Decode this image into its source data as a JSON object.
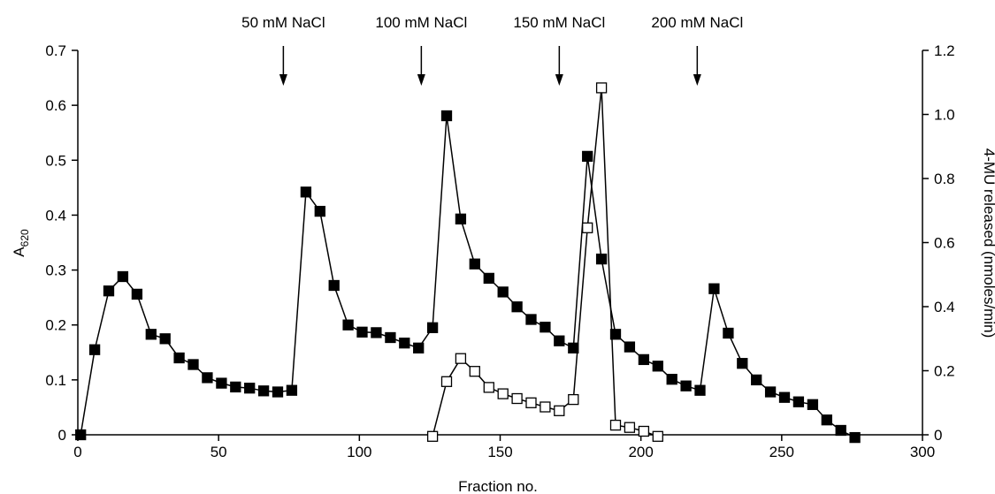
{
  "chart_data": {
    "type": "line",
    "title": "",
    "xlabel": "Fraction no.",
    "ylabel_main": "A",
    "ylabel_sub": "620",
    "y2label": "4-MU released (nmoles/min)",
    "xlim": [
      0,
      300
    ],
    "ylim": [
      0,
      0.7
    ],
    "y2lim": [
      0,
      1.2
    ],
    "x_ticks": [
      "0",
      "50",
      "100",
      "150",
      "200",
      "250",
      "300"
    ],
    "y_ticks": [
      "0",
      "0.1",
      "0.2",
      "0.3",
      "0.4",
      "0.5",
      "0.6",
      "0.7"
    ],
    "y2_ticks": [
      "0",
      "0.2",
      "0.4",
      "0.6",
      "0.8",
      "1.0",
      "1.2"
    ],
    "grid": false,
    "legend": "none",
    "annotations": [
      {
        "x": 73,
        "text": "50 mM NaCl"
      },
      {
        "x": 122,
        "text": "100 mM NaCl"
      },
      {
        "x": 171,
        "text": "150 mM NaCl"
      },
      {
        "x": 220,
        "text": "200 mM NaCl"
      }
    ],
    "series": [
      {
        "axis": "left",
        "marker": "filled-square",
        "points": [
          [
            1,
            0.0
          ],
          [
            6,
            0.155
          ],
          [
            11,
            0.262
          ],
          [
            16,
            0.288
          ],
          [
            21,
            0.256
          ],
          [
            26,
            0.183
          ],
          [
            31,
            0.175
          ],
          [
            36,
            0.14
          ],
          [
            41,
            0.128
          ],
          [
            46,
            0.104
          ],
          [
            51,
            0.094
          ],
          [
            56,
            0.087
          ],
          [
            61,
            0.085
          ],
          [
            66,
            0.08
          ],
          [
            71,
            0.078
          ],
          [
            76,
            0.081
          ],
          [
            81,
            0.442
          ],
          [
            86,
            0.407
          ],
          [
            91,
            0.272
          ],
          [
            96,
            0.2
          ],
          [
            101,
            0.187
          ],
          [
            106,
            0.186
          ],
          [
            111,
            0.177
          ],
          [
            116,
            0.167
          ],
          [
            121,
            0.158
          ],
          [
            126,
            0.195
          ],
          [
            131,
            0.581
          ],
          [
            136,
            0.393
          ],
          [
            141,
            0.311
          ],
          [
            146,
            0.285
          ],
          [
            151,
            0.26
          ],
          [
            156,
            0.233
          ],
          [
            161,
            0.21
          ],
          [
            166,
            0.196
          ],
          [
            171,
            0.171
          ],
          [
            176,
            0.158
          ],
          [
            181,
            0.507
          ],
          [
            186,
            0.32
          ],
          [
            191,
            0.183
          ],
          [
            196,
            0.16
          ],
          [
            201,
            0.137
          ],
          [
            206,
            0.125
          ],
          [
            211,
            0.101
          ],
          [
            216,
            0.089
          ],
          [
            221,
            0.081
          ],
          [
            226,
            0.266
          ],
          [
            231,
            0.185
          ],
          [
            236,
            0.13
          ],
          [
            241,
            0.1
          ],
          [
            246,
            0.078
          ],
          [
            251,
            0.068
          ],
          [
            256,
            0.06
          ],
          [
            261,
            0.055
          ],
          [
            266,
            0.027
          ],
          [
            271,
            0.008
          ],
          [
            276,
            -0.005
          ]
        ]
      },
      {
        "axis": "right",
        "marker": "open-square",
        "points": [
          [
            126,
            -0.005
          ],
          [
            131,
            0.166
          ],
          [
            136,
            0.238
          ],
          [
            141,
            0.198
          ],
          [
            146,
            0.148
          ],
          [
            151,
            0.128
          ],
          [
            156,
            0.113
          ],
          [
            161,
            0.1
          ],
          [
            166,
            0.087
          ],
          [
            171,
            0.075
          ],
          [
            176,
            0.11
          ],
          [
            181,
            0.646
          ],
          [
            186,
            1.083
          ],
          [
            191,
            0.03
          ],
          [
            196,
            0.023
          ],
          [
            201,
            0.011
          ],
          [
            206,
            -0.005
          ]
        ]
      }
    ]
  }
}
